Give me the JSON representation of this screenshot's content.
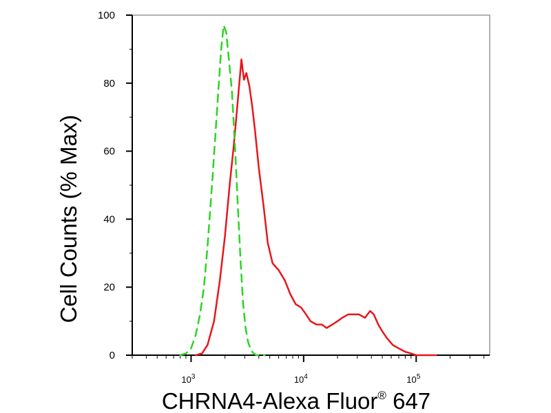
{
  "chart_data": {
    "type": "line",
    "xlabel": "CHRNA4-Alexa Fluor",
    "xlabel_superscript": "®",
    "xlabel_suffix": " 647",
    "ylabel": "Cell Counts (% Max)",
    "x_scale": "log",
    "xlim": [
      300,
      450000
    ],
    "ylim": [
      0,
      100
    ],
    "y_ticks": [
      0,
      20,
      40,
      60,
      80,
      100
    ],
    "y_tick_labels": [
      "0",
      "20",
      "40",
      "60",
      "80",
      "100"
    ],
    "x_major_ticks": [
      {
        "base": "10",
        "exp": "3",
        "value": 1000
      },
      {
        "base": "10",
        "exp": "4",
        "value": 10000
      },
      {
        "base": "10",
        "exp": "5",
        "value": 100000
      }
    ],
    "grid": false,
    "legend": "none",
    "series": [
      {
        "color": "#e8151b",
        "style": "solid",
        "x": [
          1100,
          1250,
          1400,
          1600,
          1800,
          2000,
          2200,
          2400,
          2600,
          2800,
          2950,
          3100,
          3300,
          3500,
          3700,
          4000,
          4400,
          4800,
          5300,
          6000,
          6800,
          7600,
          8500,
          9500,
          10500,
          11500,
          13000,
          14500,
          16000,
          18000,
          20000,
          22000,
          25000,
          28000,
          31000,
          35000,
          39000,
          42000,
          46000,
          50000,
          55000,
          62000,
          70000,
          80000,
          90000,
          100000,
          110000,
          130000,
          150000
        ],
        "values": [
          0,
          0.5,
          3,
          10,
          22,
          35,
          50,
          62,
          75,
          87,
          81,
          83,
          79,
          73,
          66,
          55,
          44,
          33,
          27,
          25,
          22,
          18,
          15,
          14,
          12,
          10,
          9,
          9,
          8,
          9,
          10,
          11,
          12,
          12,
          12,
          11,
          13,
          12,
          9,
          7,
          5,
          3,
          2,
          1,
          0.5,
          0,
          0,
          0,
          0
        ]
      },
      {
        "color": "#2ad422",
        "style": "dashed",
        "x": [
          800,
          900,
          1000,
          1100,
          1200,
          1300,
          1400,
          1550,
          1700,
          1850,
          1950,
          2050,
          2150,
          2300,
          2450,
          2600,
          2750,
          2900,
          3050,
          3200,
          3400,
          3600,
          3800,
          4100,
          4500
        ],
        "values": [
          0,
          0.5,
          2,
          6,
          12,
          20,
          32,
          52,
          72,
          90,
          97,
          95,
          88,
          78,
          62,
          44,
          28,
          15,
          8,
          4,
          1.5,
          0.5,
          0,
          0,
          0
        ]
      }
    ]
  }
}
